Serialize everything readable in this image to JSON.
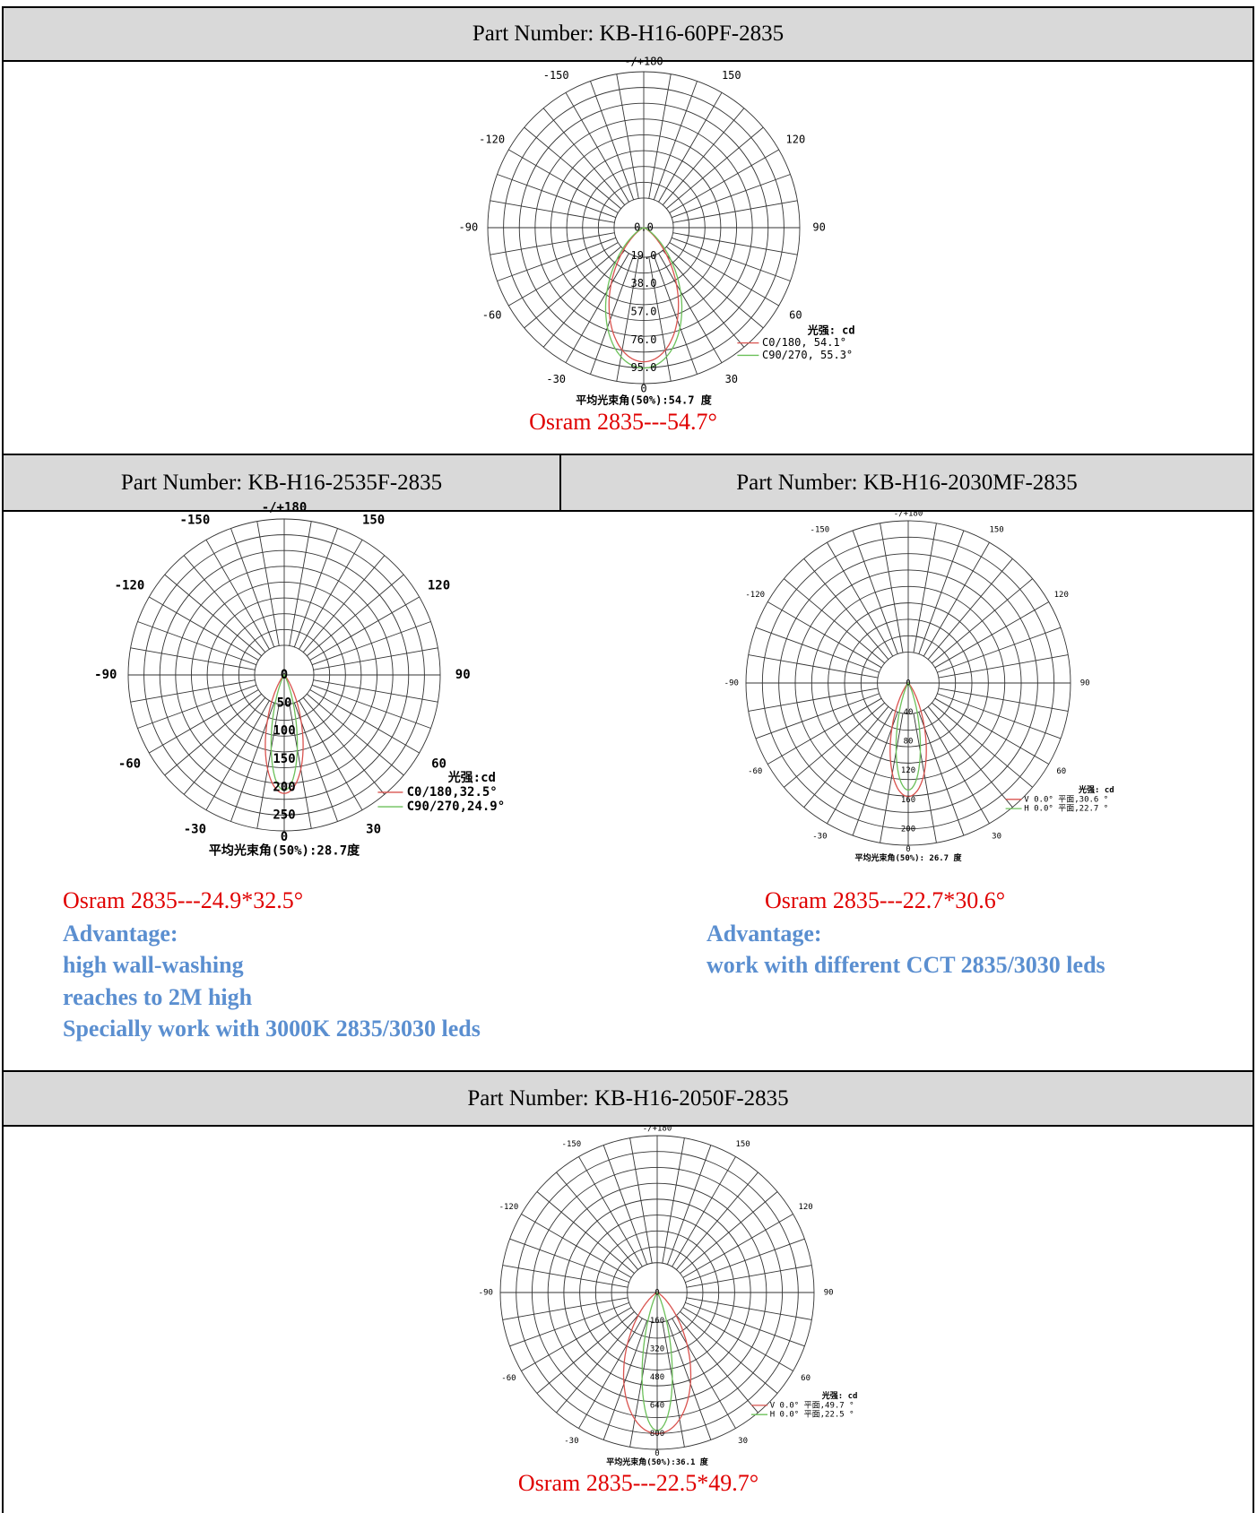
{
  "sections": [
    {
      "part_number": "Part Number: KB-H16-60PF-2835",
      "diagram": {
        "top_label": "-/+180",
        "angle_labels": [
          "-150",
          "150",
          "-120",
          "120",
          "-90",
          "90",
          "-60",
          "60",
          "-30",
          "30"
        ],
        "bottom_label": "0",
        "center_label": "0.0",
        "radial_labels": [
          "19.0",
          "38.0",
          "57.0",
          "76.0",
          "95.0"
        ],
        "unit": "光强: cd",
        "legend": [
          "C0/180, 54.1°",
          "C90/270, 55.3°"
        ],
        "beam_angle": "平均光束角(50%):54.7   度"
      },
      "caption": "Osram 2835---54.7°"
    },
    {
      "part_number": "Part Number: KB-H16-2535F-2835",
      "diagram": {
        "top_label": "-/+180",
        "angle_labels": [
          "-150",
          "150",
          "-120",
          "120",
          "-90",
          "90",
          "-60",
          "60",
          "-30",
          "30"
        ],
        "bottom_label": "0",
        "center_label": "0",
        "radial_labels": [
          "50",
          "100",
          "150",
          "200",
          "250"
        ],
        "unit": "光强:cd",
        "legend": [
          "C0/180,32.5°",
          "C90/270,24.9°"
        ],
        "beam_angle": "平均光束角(50%):28.7度"
      },
      "caption": "Osram 2835---24.9*32.5°",
      "advantage": {
        "title": "Advantage:",
        "lines": [
          "high wall-washing",
          "reaches to 2M high",
          "Specially work with 3000K 2835/3030 leds"
        ]
      }
    },
    {
      "part_number": "Part Number: KB-H16-2030MF-2835",
      "diagram": {
        "top_label": "-/+180",
        "angle_labels": [
          "-150",
          "150",
          "-120",
          "120",
          "-90",
          "90",
          "-60",
          "60",
          "-30",
          "30"
        ],
        "bottom_label": "0",
        "center_label": "0",
        "radial_labels": [
          "40",
          "80",
          "120",
          "160",
          "200"
        ],
        "unit": "光强: cd",
        "legend": [
          "V 0.0°  平面,30.6 °",
          "H 0.0°  平面,22.7 °"
        ],
        "beam_angle": "平均光束角(50%): 26.7   度"
      },
      "caption": "Osram 2835---22.7*30.6°",
      "advantage": {
        "title": "Advantage:",
        "lines": [
          "work with different CCT 2835/3030 leds"
        ]
      }
    },
    {
      "part_number": "Part Number: KB-H16-2050F-2835",
      "diagram": {
        "top_label": "-/+180",
        "angle_labels": [
          "-150",
          "150",
          "-120",
          "120",
          "-90",
          "90",
          "-60",
          "60",
          "-30",
          "30"
        ],
        "bottom_label": "0",
        "center_label": "0",
        "radial_labels": [
          "160",
          "320",
          "480",
          "640",
          "800"
        ],
        "unit": "光强: cd",
        "legend": [
          "V 0.0°  平面,49.7 °",
          "H 0.0°  平面,22.5 °"
        ],
        "beam_angle": "平均光束角(50%):36.1   度"
      },
      "caption": "Osram 2835---22.5*49.7°"
    }
  ]
}
